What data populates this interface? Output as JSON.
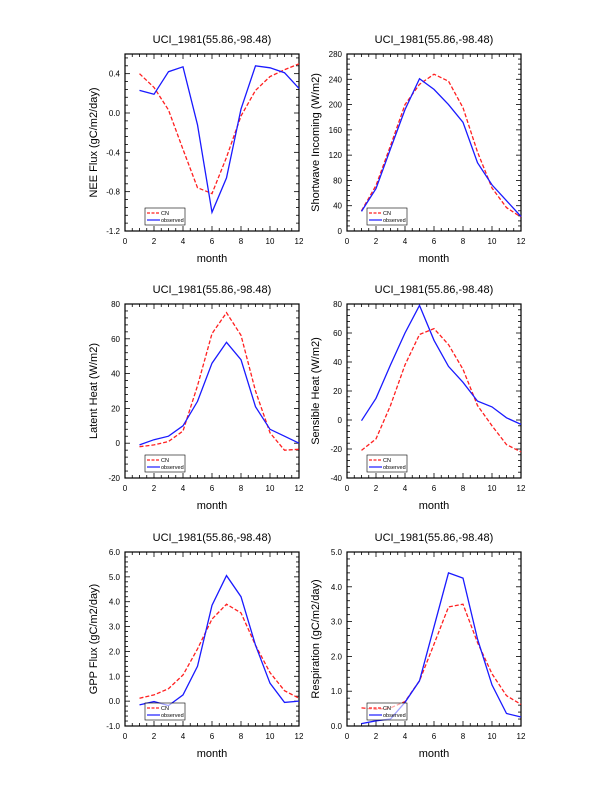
{
  "colors": {
    "model": "#ff2020",
    "observed": "#1a1aff",
    "axis": "#000000"
  },
  "chart_data": [
    {
      "type": "line",
      "title": "UCI_1981(55.86,-98.48)",
      "xlabel": "month",
      "ylabel": "NEE Flux (gC/m2/day)",
      "xlim": [
        0,
        12
      ],
      "ylim": [
        -1.2,
        0.6
      ],
      "xticks": [
        0,
        2,
        4,
        6,
        8,
        10,
        12
      ],
      "yticks": [
        -1.2,
        -0.8,
        -0.4,
        0.0,
        0.4
      ],
      "yticklabels": [
        "-1.2",
        "-0.8",
        "-0.4",
        "0.0",
        "0.4"
      ],
      "x": [
        1,
        2,
        3,
        4,
        5,
        6,
        7,
        8,
        9,
        10,
        11,
        12
      ],
      "legend": "bottom-left",
      "series": [
        {
          "name": "CN",
          "style": "dashed",
          "values": [
            0.4,
            0.26,
            0.03,
            -0.37,
            -0.76,
            -0.82,
            -0.45,
            -0.03,
            0.23,
            0.37,
            0.44,
            0.5
          ]
        },
        {
          "name": "observed",
          "style": "solid",
          "values": [
            0.23,
            0.19,
            0.42,
            0.47,
            -0.12,
            -1.01,
            -0.66,
            0.04,
            0.48,
            0.46,
            0.41,
            0.25
          ]
        }
      ]
    },
    {
      "type": "line",
      "title": "UCI_1981(55.86,-98.48)",
      "xlabel": "month",
      "ylabel": "Shortwave Incoming (W/m2)",
      "xlim": [
        0,
        12
      ],
      "ylim": [
        0,
        280
      ],
      "xticks": [
        0,
        2,
        4,
        6,
        8,
        10,
        12
      ],
      "yticks": [
        0,
        40,
        80,
        120,
        160,
        200,
        240,
        280
      ],
      "yticklabels": [
        "0",
        "40",
        "80",
        "120",
        "160",
        "200",
        "240",
        "280"
      ],
      "x": [
        1,
        2,
        3,
        4,
        5,
        6,
        7,
        8,
        9,
        10,
        11,
        12
      ],
      "legend": "bottom-left",
      "series": [
        {
          "name": "CN",
          "style": "dashed",
          "values": [
            32,
            72,
            135,
            200,
            232,
            248,
            237,
            195,
            125,
            68,
            37,
            22
          ]
        },
        {
          "name": "observed",
          "style": "solid",
          "values": [
            31,
            67,
            130,
            192,
            241,
            224,
            200,
            172,
            108,
            73,
            48,
            23
          ]
        }
      ]
    },
    {
      "type": "line",
      "title": "UCI_1981(55.86,-98.48)",
      "xlabel": "month",
      "ylabel": "Latent Heat (W/m2)",
      "xlim": [
        0,
        12
      ],
      "ylim": [
        -20,
        80
      ],
      "xticks": [
        0,
        2,
        4,
        6,
        8,
        10,
        12
      ],
      "yticks": [
        -20,
        0,
        20,
        40,
        60,
        80
      ],
      "yticklabels": [
        "-20",
        "0",
        "20",
        "40",
        "60",
        "80"
      ],
      "x": [
        1,
        2,
        3,
        4,
        5,
        6,
        7,
        8,
        9,
        10,
        11,
        12
      ],
      "legend": "bottom-left",
      "series": [
        {
          "name": "CN",
          "style": "dashed",
          "values": [
            -2,
            -1,
            1,
            7,
            33,
            63,
            75,
            62,
            30,
            6,
            -4,
            -3.5
          ]
        },
        {
          "name": "observed",
          "style": "solid",
          "values": [
            -1,
            2,
            4,
            10,
            24,
            46,
            58,
            48,
            21,
            8,
            4,
            0
          ]
        }
      ]
    },
    {
      "type": "line",
      "title": "UCI_1981(55.86,-98.48)",
      "xlabel": "month",
      "ylabel": "Sensible Heat (W/m2)",
      "xlim": [
        0,
        12
      ],
      "ylim": [
        -40,
        80
      ],
      "xticks": [
        0,
        2,
        4,
        6,
        8,
        10,
        12
      ],
      "yticks": [
        -40,
        -20,
        0,
        20,
        40,
        60,
        80
      ],
      "yticklabels": [
        "-40",
        "-20",
        "0",
        "20",
        "40",
        "60",
        "80"
      ],
      "x": [
        1,
        2,
        3,
        4,
        5,
        6,
        7,
        8,
        9,
        10,
        11,
        12
      ],
      "legend": "bottom-left",
      "series": [
        {
          "name": "CN",
          "style": "dashed",
          "values": [
            -21,
            -13,
            10,
            38,
            59,
            63,
            52,
            35,
            10,
            -4,
            -17,
            -22
          ]
        },
        {
          "name": "observed",
          "style": "solid",
          "values": [
            -0.5,
            15,
            38,
            60,
            79,
            55,
            37,
            26,
            13,
            9,
            1.5,
            -3
          ]
        }
      ]
    },
    {
      "type": "line",
      "title": "UCI_1981(55.86,-98.48)",
      "xlabel": "month",
      "ylabel": "GPP Flux (gC/m2/day)",
      "xlim": [
        0,
        12
      ],
      "ylim": [
        -1,
        6
      ],
      "xticks": [
        0,
        2,
        4,
        6,
        8,
        10,
        12
      ],
      "yticks": [
        -1,
        0,
        1,
        2,
        3,
        4,
        5,
        6
      ],
      "yticklabels": [
        "-1.0",
        "0.0",
        "1.0",
        "2.0",
        "3.0",
        "4.0",
        "5.0",
        "6.0"
      ],
      "x": [
        1,
        2,
        3,
        4,
        5,
        6,
        7,
        8,
        9,
        10,
        11,
        12
      ],
      "legend": "bottom-left",
      "series": [
        {
          "name": "CN",
          "style": "dashed",
          "values": [
            0.12,
            0.25,
            0.5,
            1.05,
            2.1,
            3.3,
            3.9,
            3.55,
            2.25,
            1.15,
            0.42,
            0.12
          ]
        },
        {
          "name": "observed",
          "style": "solid",
          "values": [
            -0.15,
            -0.02,
            -0.18,
            0.25,
            1.4,
            3.85,
            5.05,
            4.2,
            2.25,
            0.72,
            -0.05,
            0.0
          ]
        }
      ]
    },
    {
      "type": "line",
      "title": "UCI_1981(55.86,-98.48)",
      "xlabel": "month",
      "ylabel": "Respiration (gC/m2/day)",
      "xlim": [
        0,
        12
      ],
      "ylim": [
        0,
        5
      ],
      "xticks": [
        0,
        2,
        4,
        6,
        8,
        10,
        12
      ],
      "yticks": [
        0,
        1,
        2,
        3,
        4,
        5
      ],
      "yticklabels": [
        "0.0",
        "1.0",
        "2.0",
        "3.0",
        "4.0",
        "5.0"
      ],
      "x": [
        1,
        2,
        3,
        4,
        5,
        6,
        7,
        8,
        9,
        10,
        11,
        12
      ],
      "legend": "bottom-left",
      "series": [
        {
          "name": "CN",
          "style": "dashed",
          "values": [
            0.52,
            0.48,
            0.52,
            0.7,
            1.3,
            2.35,
            3.42,
            3.5,
            2.4,
            1.5,
            0.87,
            0.62
          ]
        },
        {
          "name": "observed",
          "style": "solid",
          "values": [
            0.07,
            0.15,
            0.2,
            0.68,
            1.3,
            2.85,
            4.4,
            4.25,
            2.5,
            1.18,
            0.36,
            0.26
          ]
        }
      ]
    }
  ]
}
